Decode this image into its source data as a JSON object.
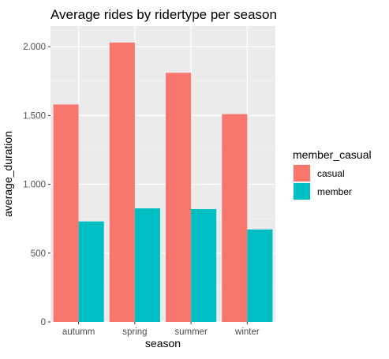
{
  "chart_data": {
    "type": "bar",
    "title": "Average rides by ridertype per season",
    "xlabel": "season",
    "ylabel": "average_duration",
    "categories": [
      "autumm",
      "spring",
      "summer",
      "winter"
    ],
    "series": [
      {
        "name": "casual",
        "color": "#F8766D",
        "values": [
          1580,
          2030,
          1810,
          1510
        ]
      },
      {
        "name": "member",
        "color": "#00BFC4",
        "values": [
          730,
          825,
          820,
          672
        ]
      }
    ],
    "ylim": [
      0,
      2150
    ],
    "yticks": [
      0,
      500,
      1000,
      1500,
      2000
    ],
    "ytick_labels": [
      "0",
      "500",
      "1.000",
      "1.500",
      "2.000"
    ],
    "grid": true,
    "legend": {
      "title": "member_casual",
      "placement": "right"
    }
  }
}
